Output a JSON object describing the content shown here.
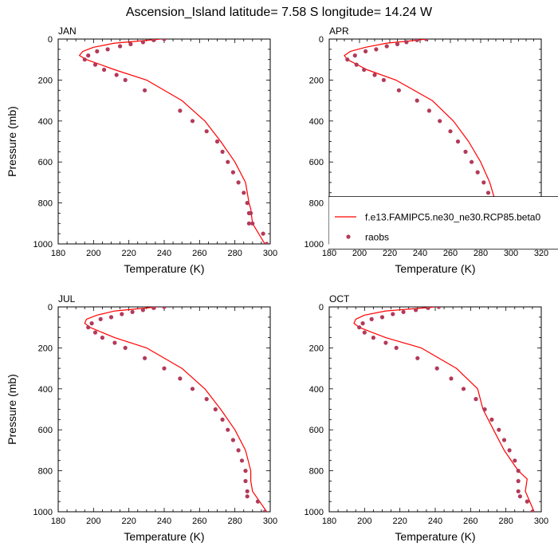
{
  "title": "Ascension_Island  latitude= 7.58 S longitude= 14.24 W",
  "colors": {
    "model": "#ff0000",
    "obs": "#b23a5a"
  },
  "legend": {
    "model_label": "f.e13.FAMIPC5.ne30_ne30.RCP85.beta0",
    "obs_label": "raobs"
  },
  "chart_data": [
    {
      "type": "line",
      "panel": "JAN",
      "xlabel": "Temperature (K)",
      "ylabel": "Pressure (mb)",
      "xlim": [
        180,
        300
      ],
      "ylim": [
        1000,
        0
      ],
      "xticks": [
        180,
        200,
        220,
        240,
        260,
        280,
        300
      ],
      "yticks": [
        0,
        200,
        400,
        600,
        800,
        1000
      ],
      "series": [
        {
          "name": "f.e13.FAMIPC5.ne30_ne30.RCP85.beta0",
          "style": "line",
          "x": [
            238,
            225,
            212,
            200,
            194,
            192,
            196,
            212,
            230,
            250,
            263,
            272,
            280,
            286,
            288,
            289,
            290,
            297
          ],
          "y": [
            0,
            10,
            20,
            40,
            60,
            80,
            100,
            150,
            200,
            300,
            400,
            500,
            600,
            700,
            800,
            830,
            900,
            1000
          ]
        },
        {
          "name": "raobs",
          "style": "markers",
          "x": [
            240,
            234,
            228,
            221,
            215,
            208,
            202,
            197,
            195,
            201,
            206,
            213,
            218,
            229,
            249,
            256,
            264,
            270,
            273,
            276,
            279,
            282,
            285,
            287,
            288,
            288,
            289,
            290,
            296,
            298
          ],
          "y": [
            0,
            5,
            15,
            25,
            35,
            50,
            60,
            80,
            100,
            125,
            150,
            175,
            200,
            250,
            350,
            400,
            450,
            500,
            550,
            600,
            650,
            700,
            750,
            800,
            850,
            900,
            850,
            900,
            950,
            1000
          ]
        }
      ]
    },
    {
      "type": "line",
      "panel": "APR",
      "xlabel": "Temperature (K)",
      "ylabel": "",
      "xlim": [
        180,
        320
      ],
      "ylim": [
        1000,
        0
      ],
      "xticks": [
        180,
        200,
        220,
        240,
        260,
        280,
        300,
        320
      ],
      "yticks": [
        0,
        200,
        400,
        600,
        800,
        1000
      ],
      "series": [
        {
          "name": "f.e13.FAMIPC5.ne30_ne30.RCP85.beta0",
          "style": "line",
          "x": [
            244,
            232,
            218,
            204,
            194,
            190,
            192,
            205,
            224,
            248,
            262,
            272,
            280,
            286,
            290,
            292,
            293,
            300
          ],
          "y": [
            0,
            10,
            20,
            40,
            60,
            80,
            100,
            150,
            200,
            300,
            400,
            500,
            600,
            700,
            800,
            850,
            900,
            1000
          ]
        },
        {
          "name": "raobs",
          "style": "markers",
          "x": [
            244,
            238,
            231,
            225,
            218,
            211,
            204,
            197,
            192,
            198,
            203,
            210,
            216,
            226,
            238,
            246,
            253,
            260,
            265,
            270,
            274,
            278,
            282,
            285,
            288,
            291,
            294,
            296,
            299,
            301
          ],
          "y": [
            0,
            5,
            15,
            25,
            35,
            50,
            60,
            80,
            100,
            125,
            150,
            175,
            200,
            250,
            300,
            350,
            400,
            450,
            500,
            550,
            600,
            650,
            700,
            750,
            800,
            850,
            900,
            925,
            950,
            1000
          ]
        }
      ]
    },
    {
      "type": "line",
      "panel": "JUL",
      "xlabel": "Temperature (K)",
      "ylabel": "Pressure (mb)",
      "xlim": [
        180,
        300
      ],
      "ylim": [
        1000,
        0
      ],
      "xticks": [
        180,
        200,
        220,
        240,
        260,
        280,
        300
      ],
      "yticks": [
        0,
        200,
        400,
        600,
        800,
        1000
      ],
      "series": [
        {
          "name": "f.e13.FAMIPC5.ne30_ne30.RCP85.beta0",
          "style": "line",
          "x": [
            236,
            224,
            212,
            202,
            196,
            195,
            198,
            212,
            230,
            250,
            263,
            272,
            280,
            286,
            289,
            289,
            290,
            298
          ],
          "y": [
            0,
            10,
            20,
            40,
            60,
            80,
            100,
            150,
            200,
            300,
            400,
            500,
            600,
            700,
            800,
            850,
            900,
            1000
          ]
        },
        {
          "name": "raobs",
          "style": "markers",
          "x": [
            240,
            234,
            228,
            222,
            216,
            210,
            204,
            199,
            197,
            201,
            205,
            212,
            218,
            229,
            240,
            249,
            256,
            264,
            269,
            273,
            276,
            279,
            282,
            284,
            286,
            286,
            287,
            287,
            293,
            297
          ],
          "y": [
            0,
            5,
            15,
            25,
            35,
            50,
            60,
            80,
            100,
            125,
            150,
            175,
            200,
            250,
            300,
            350,
            400,
            450,
            500,
            550,
            600,
            650,
            700,
            750,
            800,
            850,
            900,
            925,
            950,
            1000
          ]
        }
      ]
    },
    {
      "type": "line",
      "panel": "OCT",
      "xlabel": "Temperature (K)",
      "ylabel": "",
      "xlim": [
        180,
        300
      ],
      "ylim": [
        1000,
        0
      ],
      "xticks": [
        180,
        200,
        220,
        240,
        260,
        280,
        300
      ],
      "yticks": [
        0,
        200,
        400,
        600,
        800,
        1000
      ],
      "series": [
        {
          "name": "f.e13.FAMIPC5.ne30_ne30.RCP85.beta0",
          "style": "line",
          "x": [
            240,
            226,
            212,
            200,
            195,
            194,
            197,
            212,
            232,
            252,
            264,
            267,
            273,
            279,
            287,
            292,
            291,
            296
          ],
          "y": [
            0,
            10,
            20,
            40,
            60,
            80,
            100,
            150,
            200,
            300,
            400,
            500,
            600,
            700,
            800,
            840,
            900,
            1000
          ]
        },
        {
          "name": "raobs",
          "style": "markers",
          "x": [
            242,
            236,
            229,
            222,
            216,
            210,
            204,
            199,
            197,
            200,
            205,
            212,
            218,
            230,
            241,
            249,
            256,
            263,
            268,
            272,
            276,
            279,
            282,
            285,
            287,
            287,
            287,
            288,
            292,
            295
          ],
          "y": [
            0,
            5,
            15,
            25,
            35,
            50,
            60,
            80,
            100,
            125,
            150,
            175,
            200,
            250,
            300,
            350,
            400,
            450,
            500,
            550,
            600,
            650,
            700,
            750,
            800,
            850,
            900,
            925,
            950,
            1000
          ]
        }
      ]
    }
  ]
}
